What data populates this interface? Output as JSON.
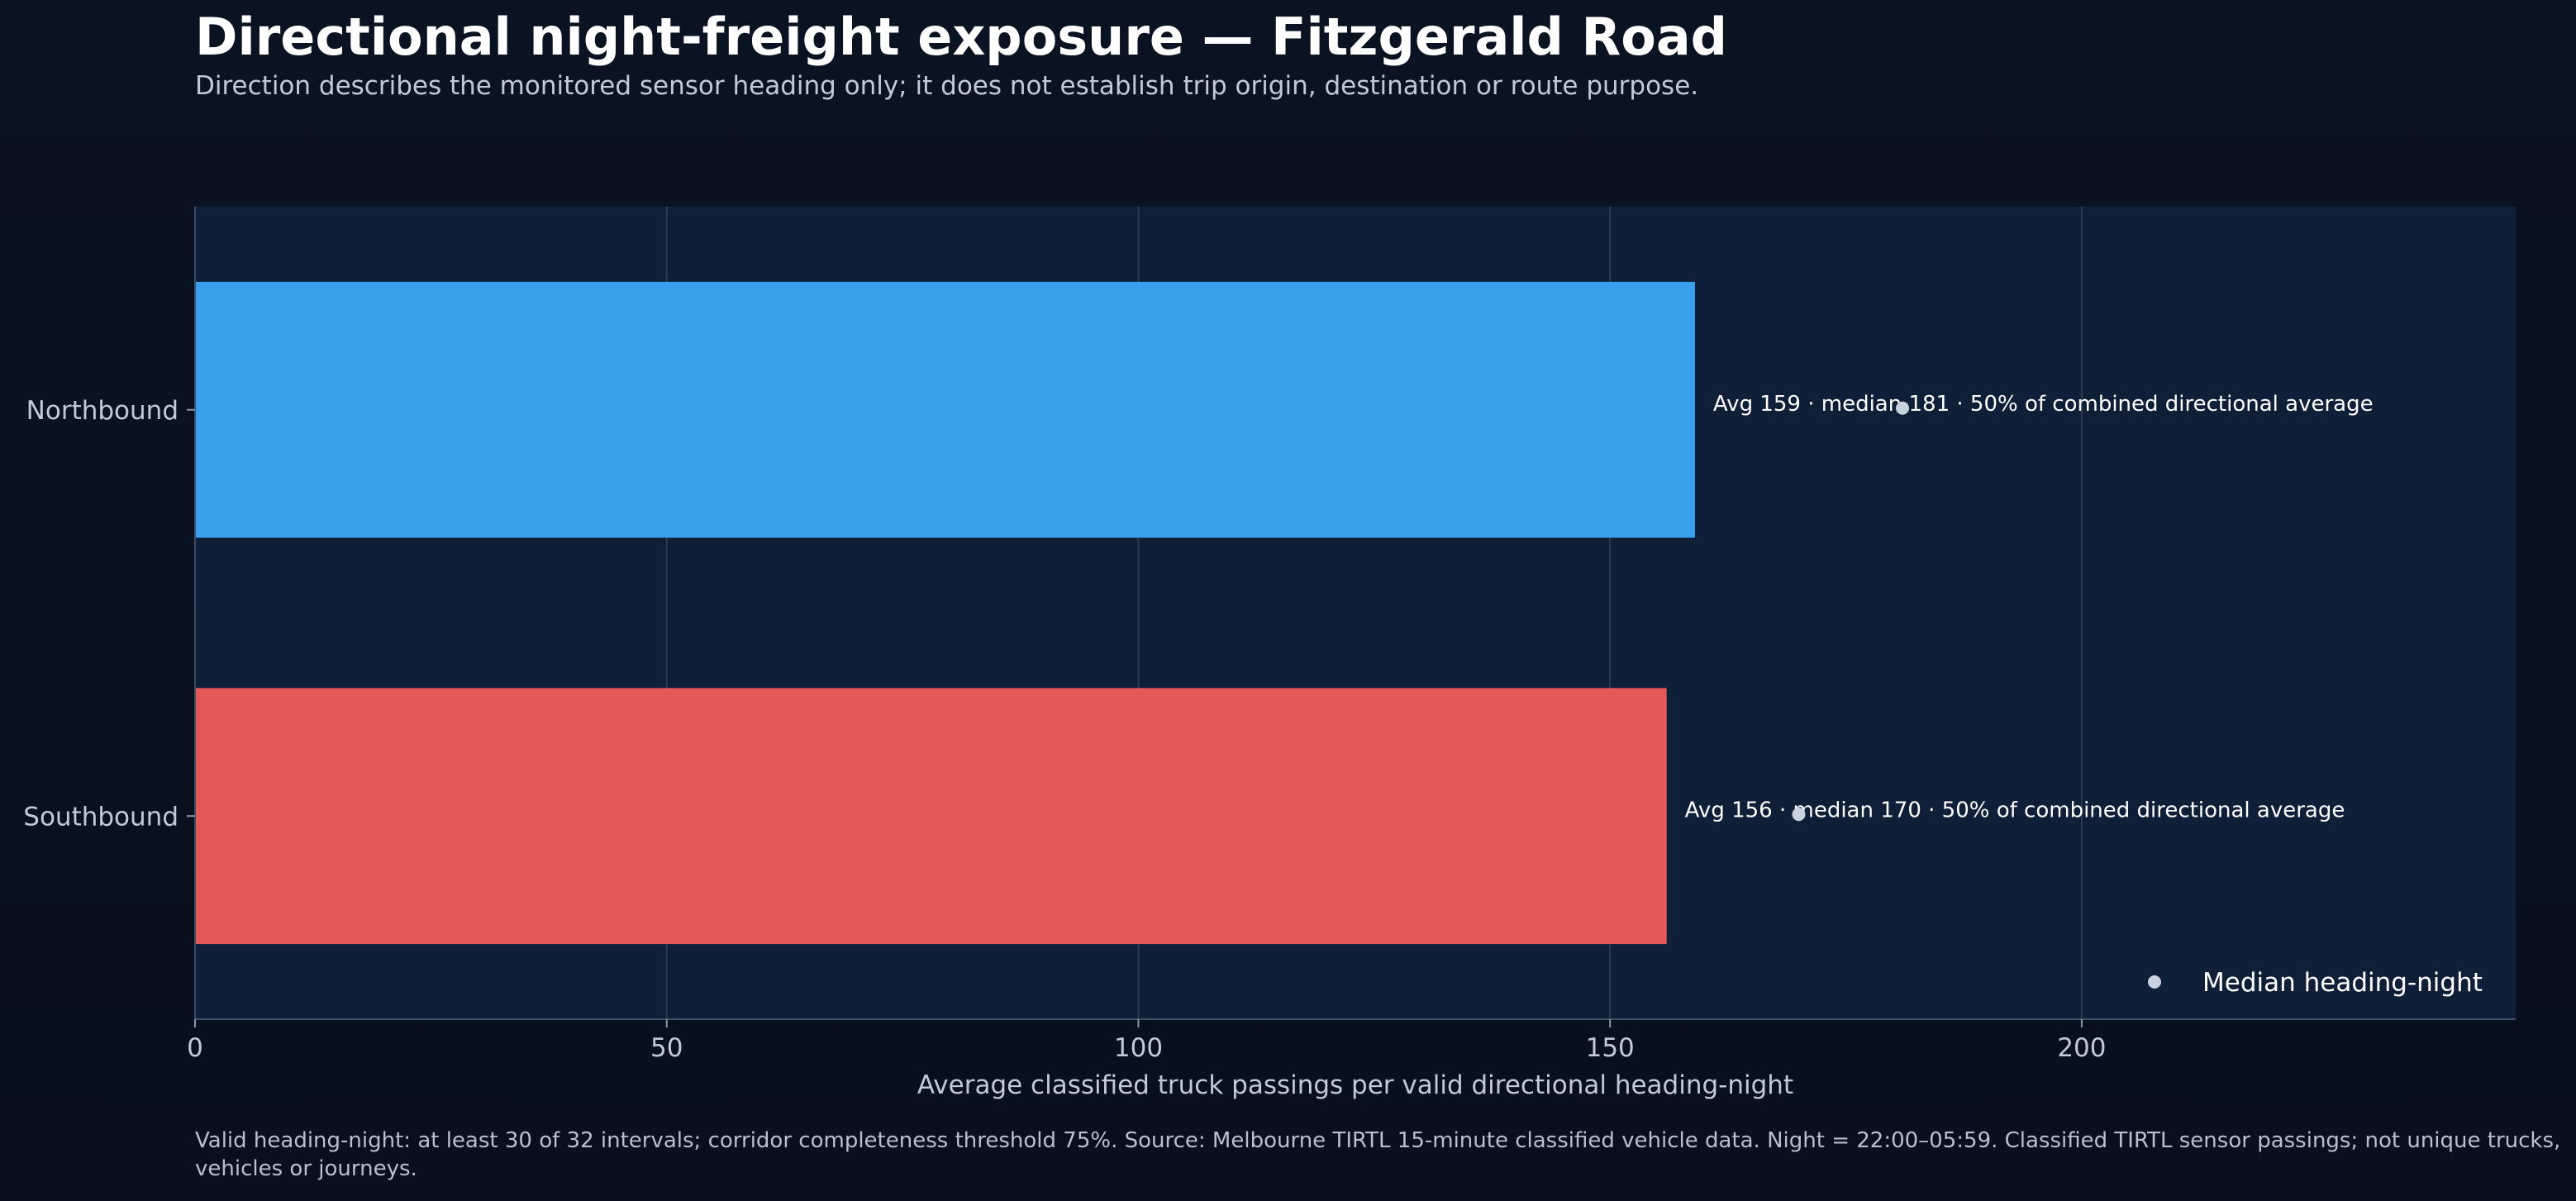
{
  "chart_data": {
    "type": "bar",
    "orientation": "horizontal",
    "title": "Directional night-freight exposure — Fitzgerald Road",
    "subtitle": "Direction describes the monitored sensor heading only; it does not establish trip origin, destination or route purpose.",
    "xlabel": "Average classified truck passings per valid directional heading-night",
    "ylabel": "",
    "xlim": [
      0,
      246
    ],
    "xticks": [
      0,
      50,
      100,
      150,
      200
    ],
    "grid": true,
    "categories": [
      "Northbound",
      "Southbound"
    ],
    "values": [
      159,
      156
    ],
    "medians": [
      181,
      170
    ],
    "bar_labels": [
      "Avg 159 · median 181 · 50% of combined directional average",
      "Avg 156 · median 170 · 50% of combined directional average"
    ],
    "colors": [
      "#3aa0ed",
      "#e45858"
    ],
    "median_marker_color": "#c9d3df",
    "legend": {
      "placement": "bottom-right",
      "entries": [
        "Median heading-night"
      ]
    },
    "footnote": "Valid heading-night: at least 30 of 32 intervals; corridor completeness threshold 75%. Source: Melbourne TIRTL 15-minute classified vehicle data. Night = 22:00–05:59. Classified TIRTL sensor passings; not unique trucks, vehicles or journeys."
  }
}
